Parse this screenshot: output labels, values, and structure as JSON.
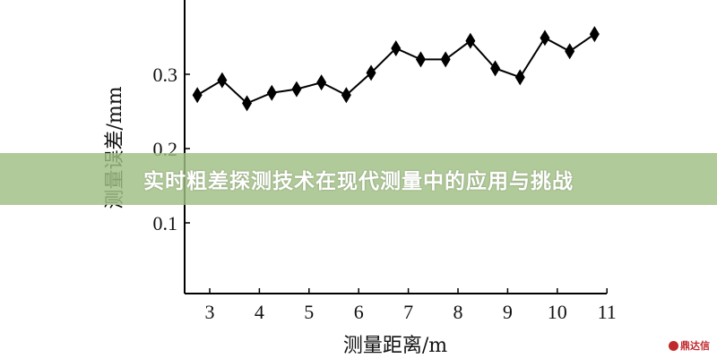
{
  "chart_data": {
    "type": "line",
    "title": "",
    "xlabel": "测量距离/m",
    "ylabel": "测量误差/mm",
    "xlim": [
      2.5,
      11
    ],
    "ylim": [
      0,
      0.4
    ],
    "xticks": [
      3,
      4,
      5,
      6,
      7,
      8,
      9,
      10,
      11
    ],
    "yticks": [
      0.1,
      0.2,
      0.3
    ],
    "grid": false,
    "marker": "diamond",
    "color": "#000000",
    "x": [
      2.75,
      3.25,
      3.75,
      4.25,
      4.75,
      5.25,
      5.75,
      6.25,
      6.75,
      7.25,
      7.75,
      8.25,
      8.75,
      9.25,
      9.75,
      10.25,
      10.75
    ],
    "y": [
      0.272,
      0.292,
      0.261,
      0.275,
      0.28,
      0.289,
      0.272,
      0.302,
      0.335,
      0.32,
      0.32,
      0.345,
      0.308,
      0.296,
      0.349,
      0.331,
      0.354
    ]
  },
  "banner": {
    "title": "实时粗差探测技术在现代测量中的应用与挑战",
    "color": "#a0be82"
  },
  "watermark": {
    "text": "鼎达信",
    "color": "#c0282d"
  }
}
